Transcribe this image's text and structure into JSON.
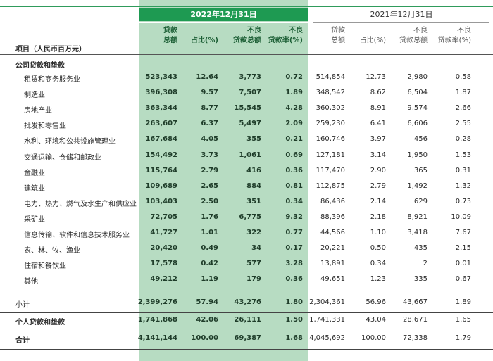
{
  "header": {
    "date_2022": "2022年12月31日",
    "date_2021": "2021年12月31日",
    "item_label": "项目（人民币百万元）",
    "cols_2022": [
      {
        "l1": "贷款",
        "l2": "总额"
      },
      {
        "l1": "",
        "l2": "占比(%)"
      },
      {
        "l1": "不良",
        "l2": "贷款总额"
      },
      {
        "l1": "不良",
        "l2": "贷款率(%)"
      }
    ],
    "cols_2021": [
      {
        "l1": "贷款",
        "l2": "总额"
      },
      {
        "l1": "",
        "l2": "占比(%)"
      },
      {
        "l1": "不良",
        "l2": "贷款总额"
      },
      {
        "l1": "不良",
        "l2": "贷款率(%)"
      }
    ]
  },
  "section_title": "公司贷款和垫款",
  "rows": [
    {
      "label": "租赁和商务服务业",
      "v": [
        "523,343",
        "12.64",
        "3,773",
        "0.72",
        "514,854",
        "12.73",
        "2,980",
        "0.58"
      ]
    },
    {
      "label": "制造业",
      "v": [
        "396,308",
        "9.57",
        "7,507",
        "1.89",
        "348,542",
        "8.62",
        "6,504",
        "1.87"
      ]
    },
    {
      "label": "房地产业",
      "v": [
        "363,344",
        "8.77",
        "15,545",
        "4.28",
        "360,302",
        "8.91",
        "9,574",
        "2.66"
      ]
    },
    {
      "label": "批发和零售业",
      "v": [
        "263,607",
        "6.37",
        "5,497",
        "2.09",
        "259,230",
        "6.41",
        "6,606",
        "2.55"
      ]
    },
    {
      "label": "水利、环境和公共设施管理业",
      "v": [
        "167,684",
        "4.05",
        "355",
        "0.21",
        "160,746",
        "3.97",
        "456",
        "0.28"
      ]
    },
    {
      "label": "交通运输、仓储和邮政业",
      "v": [
        "154,492",
        "3.73",
        "1,061",
        "0.69",
        "127,181",
        "3.14",
        "1,950",
        "1.53"
      ]
    },
    {
      "label": "金融业",
      "v": [
        "115,764",
        "2.79",
        "416",
        "0.36",
        "117,470",
        "2.90",
        "365",
        "0.31"
      ]
    },
    {
      "label": "建筑业",
      "v": [
        "109,689",
        "2.65",
        "884",
        "0.81",
        "112,875",
        "2.79",
        "1,492",
        "1.32"
      ]
    },
    {
      "label": "电力、热力、燃气及水生产和供应业",
      "v": [
        "103,403",
        "2.50",
        "351",
        "0.34",
        "86,436",
        "2.14",
        "629",
        "0.73"
      ]
    },
    {
      "label": "采矿业",
      "v": [
        "72,705",
        "1.76",
        "6,775",
        "9.32",
        "88,396",
        "2.18",
        "8,921",
        "10.09"
      ]
    },
    {
      "label": "信息传输、软件和信息技术服务业",
      "v": [
        "41,727",
        "1.01",
        "322",
        "0.77",
        "44,566",
        "1.10",
        "3,418",
        "7.67"
      ]
    },
    {
      "label": "农、林、牧、渔业",
      "v": [
        "20,420",
        "0.49",
        "34",
        "0.17",
        "20,221",
        "0.50",
        "435",
        "2.15"
      ]
    },
    {
      "label": "住宿和餐饮业",
      "v": [
        "17,578",
        "0.42",
        "577",
        "3.28",
        "13,891",
        "0.34",
        "2",
        "0.01"
      ]
    },
    {
      "label": "其他",
      "v": [
        "49,212",
        "1.19",
        "179",
        "0.36",
        "49,651",
        "1.23",
        "335",
        "0.67"
      ]
    }
  ],
  "subtotal": {
    "label": "小计",
    "v": [
      "2,399,276",
      "57.94",
      "43,276",
      "1.80",
      "2,304,361",
      "56.96",
      "43,667",
      "1.89"
    ]
  },
  "personal": {
    "label": "个人贷款和垫款",
    "v": [
      "1,741,868",
      "42.06",
      "26,111",
      "1.50",
      "1,741,331",
      "43.04",
      "28,671",
      "1.65"
    ]
  },
  "total": {
    "label": "合计",
    "v": [
      "4,141,144",
      "100.00",
      "69,387",
      "1.68",
      "4,045,692",
      "100.00",
      "72,338",
      "1.79"
    ]
  },
  "colors": {
    "band": "#b7dcc2",
    "accent": "#1e9a52"
  }
}
